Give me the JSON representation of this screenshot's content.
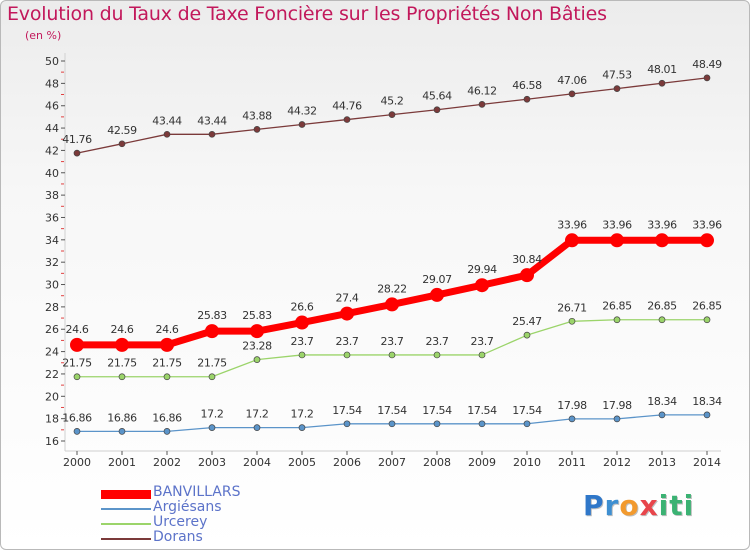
{
  "title": "Evolution du Taux de Taxe Foncière sur les Propriétés Non Bâties",
  "unit": "(en %)",
  "logo": {
    "letters": [
      "P",
      "r",
      "o",
      "x",
      "i",
      "t",
      "i"
    ],
    "colors": [
      "#2f77c9",
      "#3e8fd1",
      "#f29a2e",
      "#e8454b",
      "#3bb273",
      "#3bb273",
      "#3bb273"
    ]
  },
  "chart_data": {
    "type": "line",
    "title": "Evolution du Taux de Taxe Foncière sur les Propriétés Non Bâties",
    "ylabel": "(en %)",
    "xlabel": "",
    "x": [
      "2000",
      "2001",
      "2002",
      "2003",
      "2004",
      "2005",
      "2006",
      "2007",
      "2008",
      "2009",
      "2010",
      "2011",
      "2012",
      "2013",
      "2014"
    ],
    "ylim": [
      16,
      50
    ],
    "yticks": [
      16,
      18,
      20,
      22,
      24,
      26,
      28,
      30,
      32,
      34,
      36,
      38,
      40,
      42,
      44,
      46,
      48,
      50
    ],
    "grid": false,
    "legend_position": "bottom-left",
    "series": [
      {
        "name": "BANVILLARS",
        "color": "#ff0000",
        "values": [
          24.6,
          24.6,
          24.6,
          25.83,
          25.83,
          26.6,
          27.4,
          28.22,
          29.07,
          29.94,
          30.84,
          33.96,
          33.96,
          33.96,
          33.96
        ],
        "labels": [
          "24.6",
          "24.6",
          "24.6",
          "25.83",
          "25.83",
          "26.6",
          "27.4",
          "28.22",
          "29.07",
          "29.94",
          "30.84",
          "33.96",
          "33.96",
          "33.96",
          "33.96"
        ]
      },
      {
        "name": "Argiésans",
        "color": "#5b94c9",
        "values": [
          16.86,
          16.86,
          16.86,
          17.2,
          17.2,
          17.2,
          17.54,
          17.54,
          17.54,
          17.54,
          17.54,
          17.98,
          17.98,
          18.34,
          18.34
        ],
        "labels": [
          "16.86",
          "16.86",
          "16.86",
          "17.2",
          "17.2",
          "17.2",
          "17.54",
          "17.54",
          "17.54",
          "17.54",
          "17.54",
          "17.98",
          "17.98",
          "18.34",
          "18.34"
        ]
      },
      {
        "name": "Urcerey",
        "color": "#9bd46a",
        "values": [
          21.75,
          21.75,
          21.75,
          21.75,
          23.28,
          23.7,
          23.7,
          23.7,
          23.7,
          23.7,
          25.47,
          26.71,
          26.85,
          26.85,
          26.85
        ],
        "labels": [
          "21.75",
          "21.75",
          "21.75",
          "21.75",
          "23.28",
          "23.7",
          "23.7",
          "23.7",
          "23.7",
          "23.7",
          "25.47",
          "26.71",
          "26.85",
          "26.85",
          "26.85"
        ]
      },
      {
        "name": "Dorans",
        "color": "#7b3a3a",
        "values": [
          41.76,
          42.59,
          43.44,
          43.44,
          43.88,
          44.32,
          44.76,
          45.2,
          45.64,
          46.12,
          46.58,
          47.06,
          47.53,
          48.01,
          48.49
        ],
        "labels": [
          "41.76",
          "42.59",
          "43.44",
          "43.44",
          "43.88",
          "44.32",
          "44.76",
          "45.2",
          "45.64",
          "46.12",
          "46.58",
          "47.06",
          "47.53",
          "48.01",
          "48.49"
        ]
      }
    ]
  }
}
